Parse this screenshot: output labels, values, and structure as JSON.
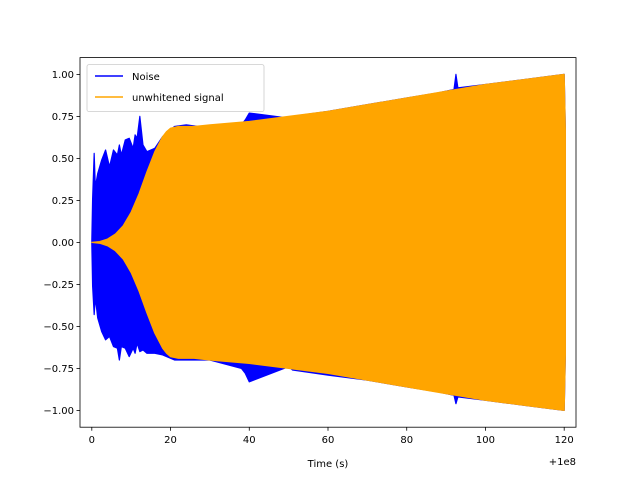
{
  "chart_data": {
    "type": "line",
    "title": "",
    "xlabel": "Time (s)",
    "ylabel": "",
    "x_offset_label": "+1e8",
    "xlim": [
      -3,
      123
    ],
    "ylim": [
      -1.1,
      1.1
    ],
    "grid": false,
    "legend_placement": "top-left",
    "xticks": [
      0,
      20,
      40,
      60,
      80,
      100,
      120
    ],
    "xtick_labels": [
      "0",
      "20",
      "40",
      "60",
      "80",
      "100",
      "120"
    ],
    "yticks": [
      -1.0,
      -0.75,
      -0.5,
      -0.25,
      0.0,
      0.25,
      0.5,
      0.75,
      1.0
    ],
    "ytick_labels": [
      "−1.00",
      "−0.75",
      "−0.50",
      "−0.25",
      "0.00",
      "0.25",
      "0.50",
      "0.75",
      "1.00"
    ],
    "series": [
      {
        "name": "Noise",
        "color": "#0000ff",
        "style": "dense-oscillation",
        "upper_envelope": {
          "x": [
            0,
            0.2,
            0.6,
            0.9,
            1.5,
            2.5,
            3.5,
            4.5,
            5.5,
            6.5,
            7,
            7.5,
            8.5,
            9.5,
            10.5,
            11,
            11.5,
            12.2,
            13,
            14,
            16,
            18,
            21,
            24,
            27,
            30,
            38,
            39,
            40,
            50,
            51,
            60,
            70,
            80,
            88,
            92,
            92.5,
            93,
            100,
            110,
            120,
            120.3
          ],
          "y": [
            0.01,
            0.26,
            0.53,
            0.33,
            0.41,
            0.49,
            0.55,
            0.45,
            0.55,
            0.52,
            0.58,
            0.52,
            0.61,
            0.62,
            0.56,
            0.64,
            0.62,
            0.75,
            0.58,
            0.54,
            0.56,
            0.63,
            0.69,
            0.7,
            0.69,
            0.69,
            0.7,
            0.73,
            0.77,
            0.74,
            0.75,
            0.78,
            0.82,
            0.86,
            0.89,
            0.91,
            1.0,
            0.92,
            0.94,
            0.97,
            1.0,
            0.67
          ]
        },
        "lower_envelope": {
          "x": [
            0,
            0.2,
            0.6,
            0.9,
            1.5,
            2.5,
            3.5,
            4.5,
            5.5,
            6.5,
            7,
            7.5,
            8.5,
            9.5,
            10.5,
            11,
            11.5,
            12.2,
            13,
            14,
            16,
            18,
            21,
            24,
            27,
            30,
            38,
            39,
            40,
            50,
            51,
            60,
            70,
            80,
            88,
            92,
            92.5,
            93,
            100,
            110,
            120,
            120.3
          ],
          "y": [
            -0.01,
            -0.26,
            -0.43,
            -0.33,
            -0.45,
            -0.53,
            -0.58,
            -0.56,
            -0.62,
            -0.63,
            -0.7,
            -0.62,
            -0.63,
            -0.68,
            -0.63,
            -0.66,
            -0.6,
            -0.65,
            -0.64,
            -0.66,
            -0.66,
            -0.67,
            -0.7,
            -0.7,
            -0.7,
            -0.7,
            -0.75,
            -0.78,
            -0.83,
            -0.74,
            -0.76,
            -0.79,
            -0.82,
            -0.86,
            -0.89,
            -0.91,
            -0.96,
            -0.92,
            -0.94,
            -0.97,
            -1.0,
            -0.67
          ]
        }
      },
      {
        "name": "unwhitened signal",
        "color": "#ffa500",
        "style": "dense-oscillation",
        "upper_envelope": {
          "x": [
            0,
            2,
            4,
            6,
            8,
            10,
            12,
            14,
            16,
            18,
            19,
            20,
            22,
            24,
            26,
            30,
            40,
            50,
            60,
            70,
            80,
            90,
            100,
            110,
            120,
            120.3
          ],
          "y": [
            0.0,
            0.005,
            0.02,
            0.05,
            0.1,
            0.18,
            0.29,
            0.42,
            0.54,
            0.63,
            0.66,
            0.68,
            0.69,
            0.69,
            0.69,
            0.7,
            0.72,
            0.75,
            0.78,
            0.82,
            0.86,
            0.9,
            0.94,
            0.97,
            1.0,
            0.67
          ]
        },
        "lower_envelope": {
          "x": [
            0,
            2,
            4,
            6,
            8,
            10,
            12,
            14,
            16,
            18,
            19,
            20,
            22,
            24,
            26,
            30,
            40,
            50,
            60,
            70,
            80,
            90,
            100,
            110,
            120,
            120.3
          ],
          "y": [
            0.0,
            -0.005,
            -0.02,
            -0.05,
            -0.1,
            -0.18,
            -0.29,
            -0.42,
            -0.54,
            -0.63,
            -0.66,
            -0.68,
            -0.69,
            -0.69,
            -0.69,
            -0.7,
            -0.72,
            -0.75,
            -0.78,
            -0.82,
            -0.86,
            -0.9,
            -0.94,
            -0.97,
            -1.0,
            -0.67
          ]
        }
      }
    ]
  }
}
